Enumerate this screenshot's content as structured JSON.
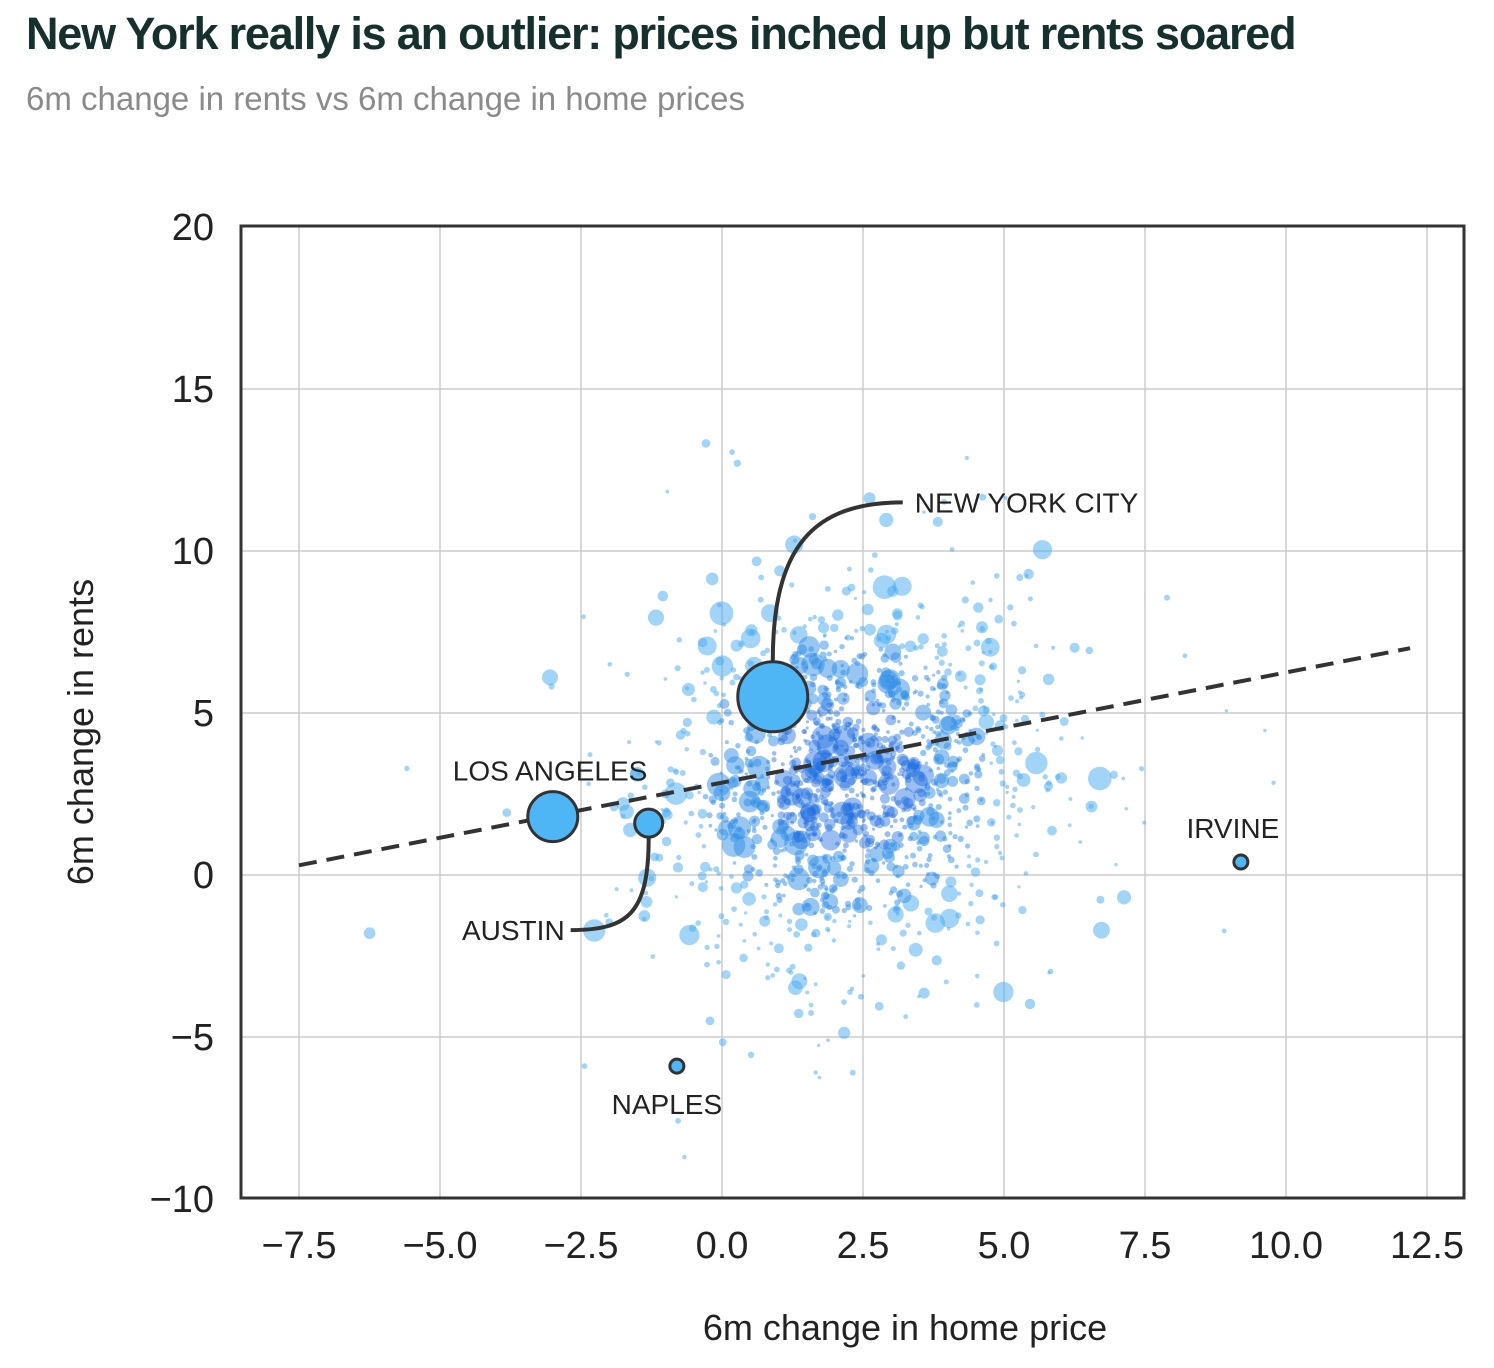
{
  "title": "New York really is an outlier: prices inched up but rents soared",
  "subtitle": "6m change in rents vs 6m change in home prices",
  "colors": {
    "point": "#3aa6f0",
    "highlight": "#4eb6f5",
    "outline": "#333333",
    "trend": "#333333",
    "grid": "#cccccc",
    "title": "#16302d"
  },
  "chart_data": {
    "type": "scatter",
    "title": "New York really is an outlier: prices inched up but rents soared",
    "subtitle": "6m change in rents vs 6m change in home prices",
    "xlabel": "6m change in home price",
    "ylabel": "6m change in rents",
    "xlim": [
      -8.5,
      13.2
    ],
    "ylim": [
      -10,
      20
    ],
    "x_ticks": [
      -7.5,
      -5.0,
      -2.5,
      0.0,
      2.5,
      5.0,
      7.5,
      10.0,
      12.5
    ],
    "x_tick_labels": [
      "−7.5",
      "−5.0",
      "−2.5",
      "0.0",
      "2.5",
      "5.0",
      "7.5",
      "10.0",
      "12.5"
    ],
    "y_ticks": [
      20,
      15,
      10,
      5,
      0,
      -5,
      -10
    ],
    "y_tick_labels": [
      "20",
      "15",
      "10",
      "5",
      "0",
      "−5",
      "−10"
    ],
    "grid": true,
    "trend_line": {
      "style": "dashed",
      "from": [
        -7.5,
        0.3
      ],
      "to": [
        12.2,
        7.0
      ]
    },
    "highlighted": [
      {
        "label": "NEW YORK CITY",
        "x": 0.9,
        "y": 5.5,
        "size": "large"
      },
      {
        "label": "LOS ANGELES",
        "x": -3.0,
        "y": 1.8,
        "size": "medium"
      },
      {
        "label": "AUSTIN",
        "x": -1.3,
        "y": 1.6,
        "size": "small"
      },
      {
        "label": "NAPLES",
        "x": -0.8,
        "y": -5.9,
        "size": "tiny"
      },
      {
        "label": "IRVINE",
        "x": 9.2,
        "y": 0.4,
        "size": "tiny"
      }
    ],
    "background_cloud": {
      "center": [
        2.2,
        3.0
      ],
      "spread": [
        1.6,
        2.7
      ],
      "approx_count": 1400,
      "note_range_x": [
        -7.7,
        12.2
      ],
      "note_range_y": [
        -9,
        19.5
      ]
    }
  }
}
